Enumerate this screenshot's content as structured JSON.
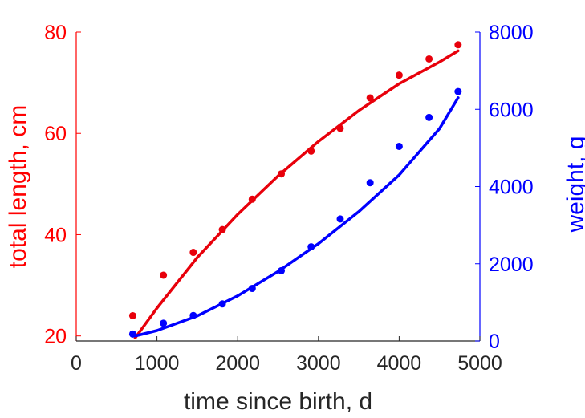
{
  "chart_data": {
    "type": "scatter",
    "xlabel": "time since birth, d",
    "ylabel_left": "total length, cm",
    "ylabel_right": "weight, g",
    "xlim": [
      0,
      5000
    ],
    "ylim_left": [
      19,
      80
    ],
    "ylim_right": [
      0,
      8000
    ],
    "xticks": [
      0,
      1000,
      2000,
      3000,
      4000,
      5000
    ],
    "yticks_left": [
      20,
      40,
      60,
      80
    ],
    "yticks_right": [
      0,
      2000,
      4000,
      6000,
      8000
    ],
    "grid": false,
    "colors": {
      "left": "#ff0000",
      "right": "#0000ff",
      "axis": "#262626"
    },
    "series": [
      {
        "axis": "left",
        "color": "#e8000b",
        "x": [
          700,
          1080,
          1450,
          1810,
          2180,
          2540,
          2910,
          3270,
          3640,
          4000,
          4370,
          4730
        ],
        "y": [
          24,
          32,
          36.5,
          41,
          47,
          52,
          56.5,
          61,
          67,
          71.5,
          74.7,
          77.5
        ],
        "fit_x": [
          730,
          1000,
          1500,
          2000,
          2500,
          3000,
          3500,
          4000,
          4500,
          4730
        ],
        "fit_y": [
          19.6,
          25.5,
          35.5,
          44.0,
          51.6,
          58.4,
          64.5,
          69.8,
          74.1,
          76.3
        ]
      },
      {
        "axis": "right",
        "color": "#0000ff",
        "x": [
          700,
          1080,
          1450,
          1810,
          2180,
          2540,
          2910,
          3270,
          3640,
          4000,
          4370,
          4730
        ],
        "y": [
          180,
          460,
          660,
          960,
          1360,
          1820,
          2440,
          3160,
          4100,
          5040,
          5790,
          6460
        ],
        "fit_x": [
          730,
          1000,
          1500,
          2000,
          2500,
          3000,
          3500,
          4000,
          4500,
          4730
        ],
        "fit_y": [
          130,
          270,
          650,
          1170,
          1800,
          2520,
          3350,
          4300,
          5500,
          6300
        ]
      }
    ]
  }
}
